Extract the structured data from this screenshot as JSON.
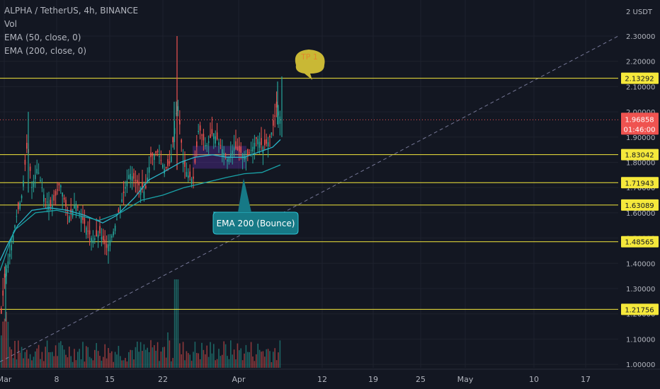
{
  "header": {
    "symbol_line": "ALPHA / TetherUS, 4h, BINANCE",
    "vol_label": "Vol",
    "ema50_label": "EMA (50, close, 0)",
    "ema200_label": "EMA (200, close, 0)"
  },
  "colors": {
    "background": "#131722",
    "grid": "#1e222d",
    "up_candle": "#26a69a",
    "down_candle": "#ef5350",
    "level_line": "#f5e83b",
    "ema50": "#2ab5c9",
    "ema200": "#19a3a8",
    "trend_line": "#8e8fb3",
    "current_price": "#ef5350",
    "tp_bubble": "#c9b835",
    "ema_callout": "#167986"
  },
  "annotations": {
    "tp_label": "TP 1",
    "ema_label": "EMA 200 (Bounce)"
  },
  "current_price": {
    "value": "1.96858",
    "countdown": "01:46:00"
  },
  "chart_data": {
    "type": "candlestick",
    "title": "ALPHA / TetherUS, 4h, BINANCE",
    "y_axis_unit": "2 USDT",
    "ylim": [
      0.97,
      2.4
    ],
    "y_ticks": [
      "2.30000",
      "2.20000",
      "2.10000",
      "2.00000",
      "1.90000",
      "1.80000",
      "1.70000",
      "1.60000",
      "1.50000",
      "1.40000",
      "1.30000",
      "1.20000",
      "1.10000",
      "1.00000"
    ],
    "x_ticks": [
      "Mar",
      "8",
      "15",
      "22",
      "Apr",
      "12",
      "19",
      "25",
      "May",
      "10",
      "17"
    ],
    "horizontal_levels": [
      "2.13292",
      "1.83042",
      "1.71943",
      "1.63089",
      "1.48565",
      "1.21756"
    ],
    "series": [
      {
        "name": "EMA (50, close, 0)"
      },
      {
        "name": "EMA (200, close, 0)"
      }
    ],
    "price_path": [
      [
        0,
        1.17
      ],
      [
        6,
        1.35
      ],
      [
        14,
        1.45
      ],
      [
        22,
        1.58
      ],
      [
        30,
        1.67
      ],
      [
        38,
        1.88
      ],
      [
        44,
        1.7
      ],
      [
        52,
        1.78
      ],
      [
        62,
        1.66
      ],
      [
        72,
        1.62
      ],
      [
        84,
        1.72
      ],
      [
        96,
        1.58
      ],
      [
        106,
        1.64
      ],
      [
        118,
        1.56
      ],
      [
        130,
        1.49
      ],
      [
        140,
        1.52
      ],
      [
        150,
        1.46
      ],
      [
        160,
        1.53
      ],
      [
        172,
        1.66
      ],
      [
        182,
        1.76
      ],
      [
        192,
        1.72
      ],
      [
        204,
        1.68
      ],
      [
        212,
        1.82
      ],
      [
        222,
        1.84
      ],
      [
        232,
        1.77
      ],
      [
        240,
        1.8
      ],
      [
        246,
        1.94
      ],
      [
        250,
        2.04
      ],
      [
        258,
        1.8
      ],
      [
        264,
        1.75
      ],
      [
        272,
        1.73
      ],
      [
        280,
        1.94
      ],
      [
        290,
        1.86
      ],
      [
        300,
        1.92
      ],
      [
        310,
        1.87
      ],
      [
        320,
        1.81
      ],
      [
        330,
        1.86
      ],
      [
        338,
        1.84
      ],
      [
        348,
        1.82
      ],
      [
        356,
        1.86
      ],
      [
        362,
        1.9
      ],
      [
        370,
        1.86
      ],
      [
        378,
        1.88
      ],
      [
        384,
        1.93
      ],
      [
        390,
        2.02
      ],
      [
        396,
        1.97
      ]
    ],
    "ema50_path": [
      [
        0,
        1.41
      ],
      [
        10,
        1.47
      ],
      [
        25,
        1.55
      ],
      [
        45,
        1.61
      ],
      [
        70,
        1.62
      ],
      [
        95,
        1.61
      ],
      [
        120,
        1.59
      ],
      [
        145,
        1.56
      ],
      [
        165,
        1.59
      ],
      [
        190,
        1.66
      ],
      [
        210,
        1.73
      ],
      [
        230,
        1.76
      ],
      [
        255,
        1.8
      ],
      [
        275,
        1.82
      ],
      [
        300,
        1.83
      ],
      [
        320,
        1.82
      ],
      [
        345,
        1.82
      ],
      [
        365,
        1.84
      ],
      [
        385,
        1.86
      ],
      [
        396,
        1.89
      ]
    ],
    "ema200_path": [
      [
        0,
        1.37
      ],
      [
        20,
        1.53
      ],
      [
        50,
        1.6
      ],
      [
        80,
        1.61
      ],
      [
        110,
        1.59
      ],
      [
        140,
        1.57
      ],
      [
        170,
        1.6
      ],
      [
        200,
        1.65
      ],
      [
        230,
        1.67
      ],
      [
        260,
        1.7
      ],
      [
        290,
        1.72
      ],
      [
        320,
        1.74
      ],
      [
        345,
        1.755
      ],
      [
        370,
        1.76
      ],
      [
        396,
        1.79
      ]
    ],
    "trend_line": [
      [
        0,
        1.01
      ],
      [
        873,
        2.3
      ]
    ]
  }
}
